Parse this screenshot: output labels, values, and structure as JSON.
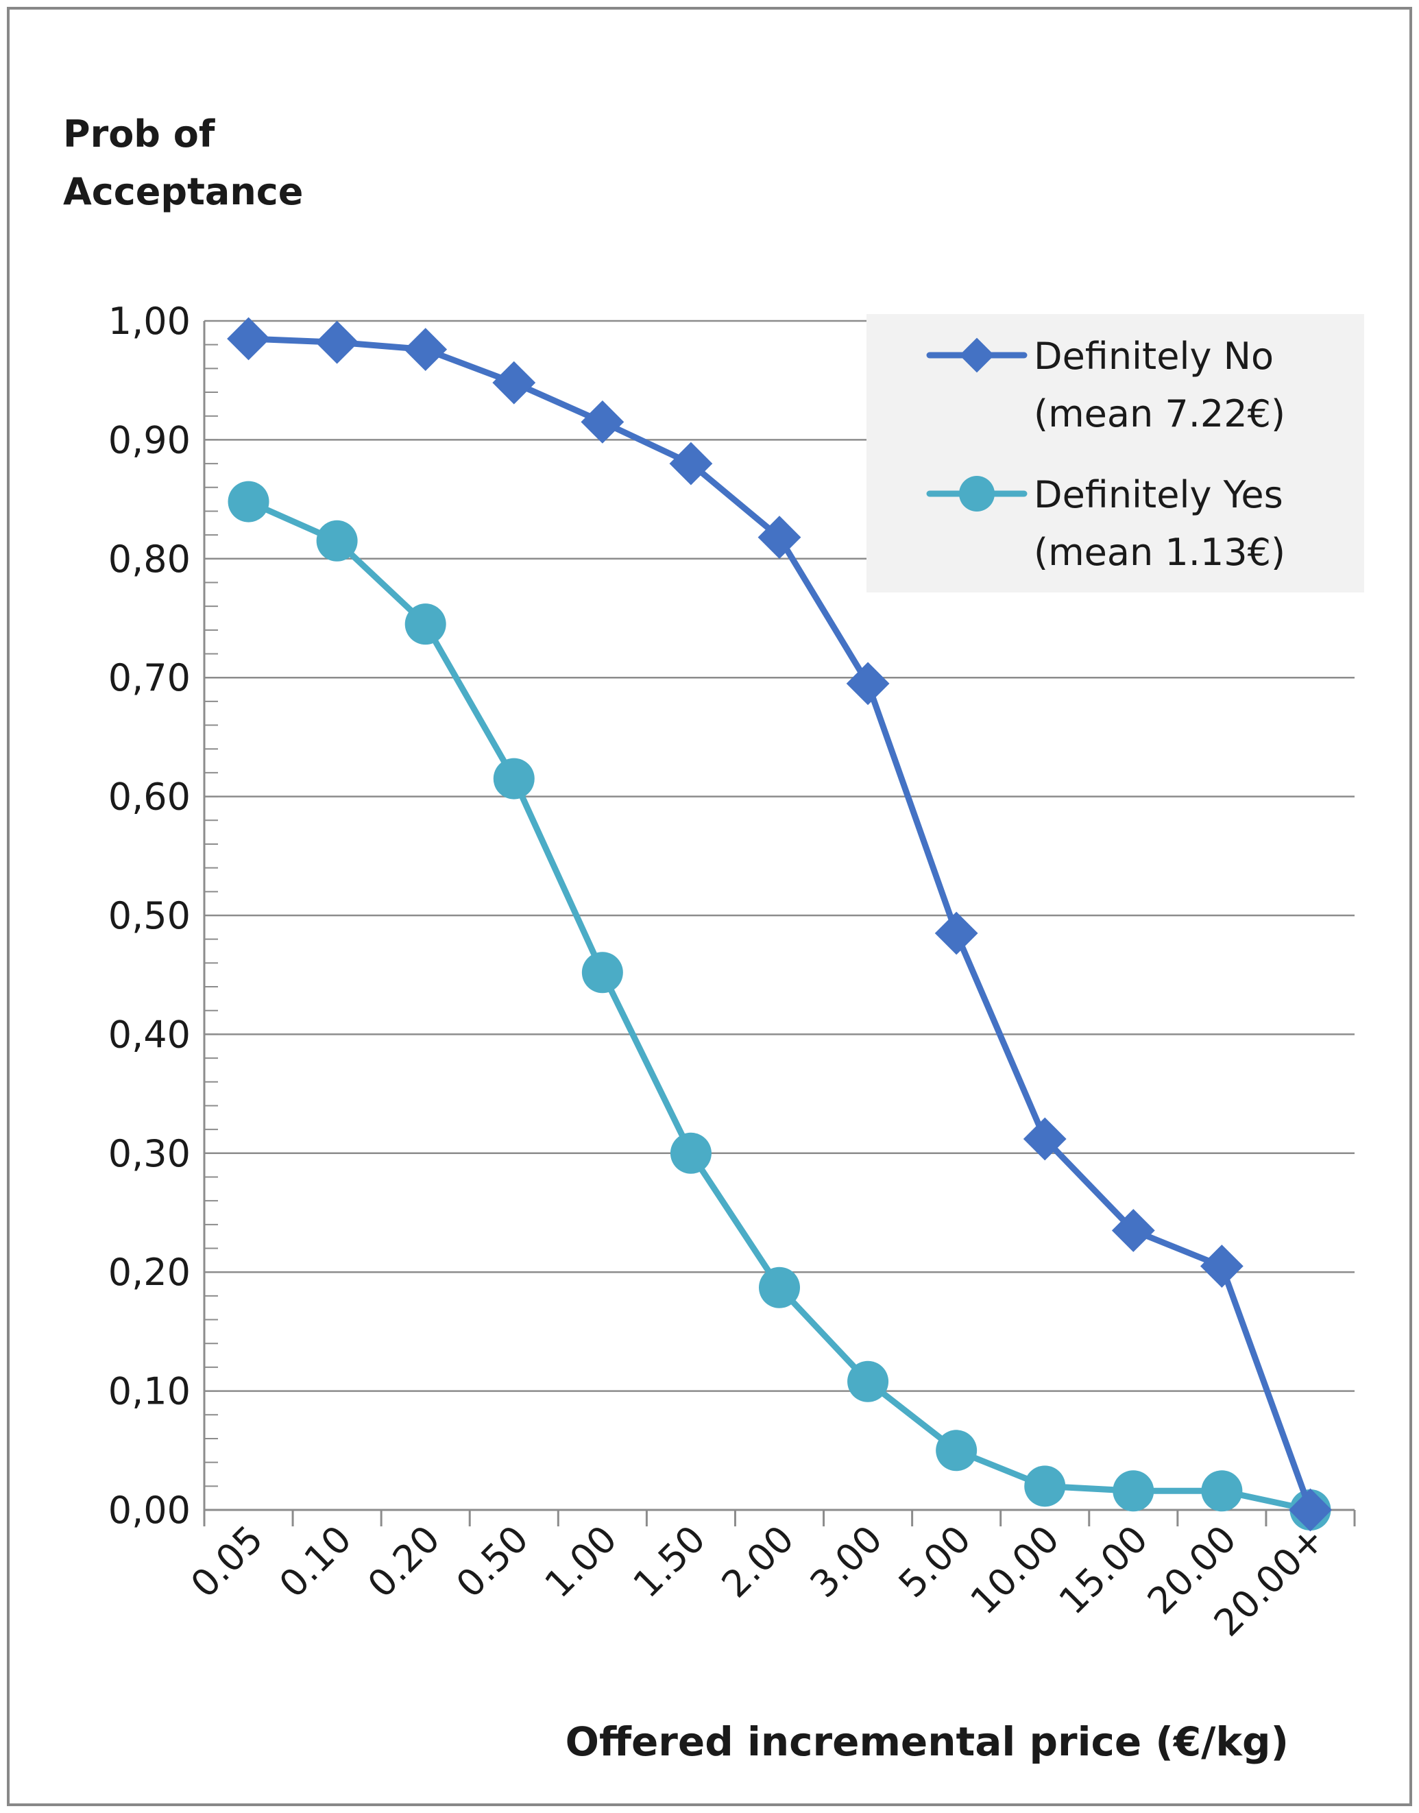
{
  "chart_data": {
    "type": "line",
    "title": "",
    "ylabel_lines": [
      "Prob of",
      "Acceptance"
    ],
    "xlabel": "Offered incremental price (€/kg)",
    "categories": [
      "0.05",
      "0.10",
      "0.20",
      "0.50",
      "1.00",
      "1.50",
      "2.00",
      "3.00",
      "5.00",
      "10.00",
      "15.00",
      "20.00",
      "20.00+"
    ],
    "y_ticks": [
      "0,00",
      "0,10",
      "0,20",
      "0,30",
      "0,40",
      "0,50",
      "0,60",
      "0,70",
      "0,80",
      "0,90",
      "1,00"
    ],
    "ylim": [
      0,
      1
    ],
    "grid": true,
    "legend_position": "top-right",
    "series": [
      {
        "name_lines": [
          "Definitely No",
          "(mean 7.22€)"
        ],
        "marker": "diamond",
        "color": "#4472C4",
        "values": [
          0.985,
          0.982,
          0.976,
          0.948,
          0.915,
          0.88,
          0.818,
          0.695,
          0.485,
          0.312,
          0.235,
          0.205,
          0.0
        ]
      },
      {
        "name_lines": [
          "Definitely Yes",
          "(mean 1.13€)"
        ],
        "marker": "circle",
        "color": "#4BACC6",
        "values": [
          0.848,
          0.815,
          0.745,
          0.615,
          0.452,
          0.3,
          0.187,
          0.108,
          0.05,
          0.02,
          0.016,
          0.016,
          0.0
        ]
      }
    ]
  }
}
